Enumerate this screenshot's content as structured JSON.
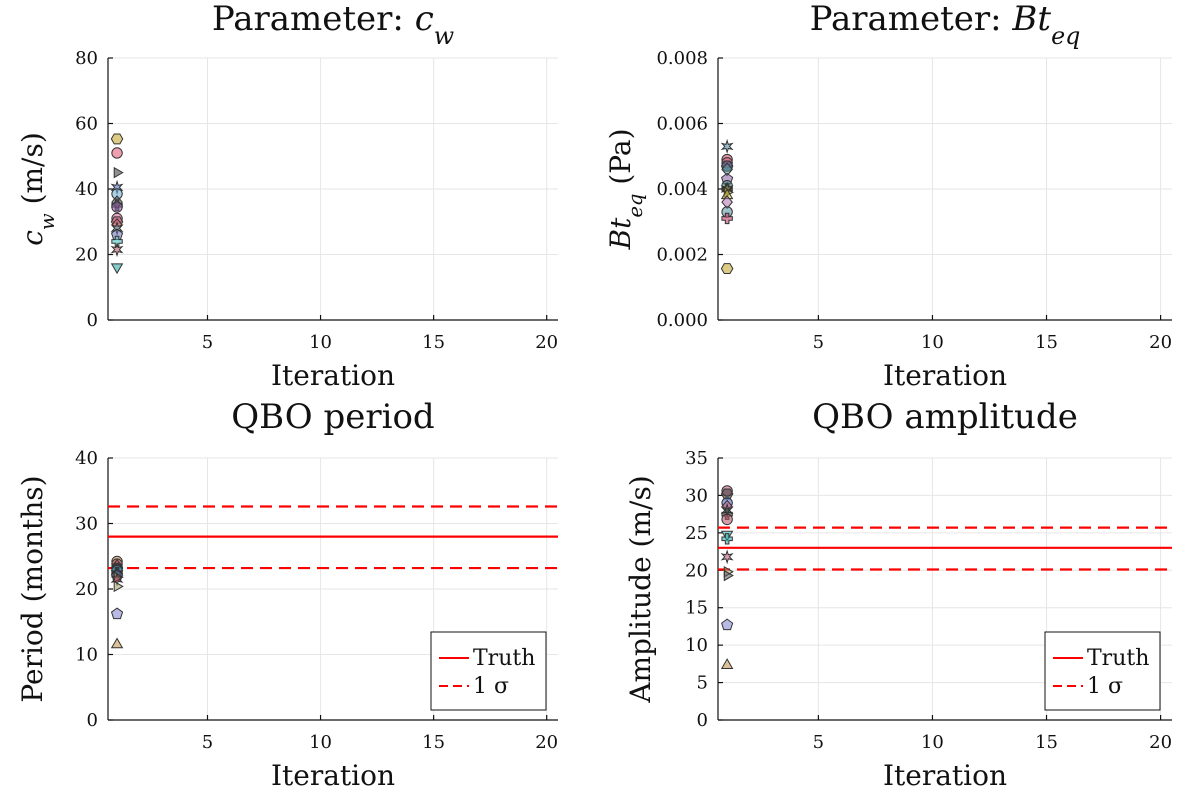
{
  "figure": {
    "background": "#ffffff"
  },
  "chart_data": [
    {
      "id": "cw",
      "type": "scatter",
      "title": "Parameter: c_w",
      "title_parts": [
        {
          "t": "Parameter: "
        },
        {
          "t": "c",
          "i": true
        },
        {
          "t": "w",
          "sub": true,
          "i": true
        }
      ],
      "xlabel": "Iteration",
      "ylabel": "c_w (m/s)",
      "ylabel_parts": [
        {
          "t": "c",
          "i": true
        },
        {
          "t": "w",
          "sub": true,
          "i": true
        },
        {
          "t": "  (m/s)"
        }
      ],
      "xlim": [
        0.6,
        20.5
      ],
      "ylim": [
        0,
        80
      ],
      "xticks": [
        5,
        10,
        15,
        20
      ],
      "xtick_labels": [
        "5",
        "10",
        "15",
        "20"
      ],
      "yticks": [
        0,
        20,
        40,
        60,
        80
      ],
      "ytick_labels": [
        "0",
        "20",
        "40",
        "60",
        "80"
      ],
      "grid": true,
      "x": [
        1,
        1,
        1,
        1,
        1,
        1,
        1,
        1,
        1,
        1,
        1,
        1,
        1,
        1,
        1,
        1
      ],
      "values": [
        55.3,
        51,
        45,
        40.5,
        38.5,
        36,
        35,
        34.5,
        31,
        30,
        29,
        28,
        26,
        24,
        21.5,
        16.2
      ],
      "colors": [
        "#c0a020",
        "#e05070",
        "#333333",
        "#4060c0",
        "#66aacc",
        "#555555",
        "#2a2a2a",
        "#8a5aa0",
        "#d0608a",
        "#c05070",
        "#e08080",
        "#5a9a9a",
        "#6a70b0",
        "#40c0c0",
        "#b05060",
        "#20a0a0"
      ],
      "markers": [
        "hex",
        "circle",
        "tri_right",
        "star",
        "circle",
        "diamond",
        "cross",
        "circle",
        "circle",
        "hex",
        "diamond",
        "star",
        "pent",
        "cross",
        "star",
        "tri_down"
      ]
    },
    {
      "id": "bt",
      "type": "scatter",
      "title": "Parameter: Bt_eq",
      "title_parts": [
        {
          "t": "Parameter: "
        },
        {
          "t": "Bt",
          "i": true
        },
        {
          "t": "eq",
          "sub": true,
          "i": true
        }
      ],
      "xlabel": "Iteration",
      "ylabel": "Bt_eq (Pa)",
      "ylabel_parts": [
        {
          "t": "Bt",
          "i": true
        },
        {
          "t": "eq",
          "sub": true,
          "i": true
        },
        {
          "t": "  (Pa)"
        }
      ],
      "xlim": [
        0.6,
        20.5
      ],
      "ylim": [
        0,
        0.008
      ],
      "xticks": [
        5,
        10,
        15,
        20
      ],
      "xtick_labels": [
        "5",
        "10",
        "15",
        "20"
      ],
      "yticks": [
        0,
        0.002,
        0.004,
        0.006,
        0.008
      ],
      "ytick_labels": [
        "0.000",
        "0.002",
        "0.004",
        "0.006",
        "0.008"
      ],
      "grid": true,
      "x": [
        1,
        1,
        1,
        1,
        1,
        1,
        1,
        1,
        1,
        1,
        1,
        1,
        1,
        1,
        1,
        1
      ],
      "values": [
        0.0053,
        0.0049,
        0.0048,
        0.0047,
        0.0047,
        0.0046,
        0.0043,
        0.0041,
        0.004,
        0.004,
        0.0039,
        0.0038,
        0.0036,
        0.0033,
        0.0031,
        0.00157
      ],
      "colors": [
        "#4080a0",
        "#c04060",
        "#e06080",
        "#333333",
        "#6a70b0",
        "#5a9a9a",
        "#8a5aa0",
        "#3a8a8a",
        "#2a2a2a",
        "#b0a030",
        "#c0a020",
        "#d0c040",
        "#b070b0",
        "#5090a0",
        "#c03060",
        "#c0a020"
      ],
      "markers": [
        "star",
        "circle",
        "circle",
        "hex",
        "circle",
        "diamond",
        "pent",
        "circle",
        "cross",
        "star",
        "tri_right",
        "tri_up",
        "diamond",
        "circle",
        "cross",
        "hex"
      ]
    },
    {
      "id": "period",
      "type": "scatter",
      "title": "QBO period",
      "title_parts": [
        {
          "t": "QBO period"
        }
      ],
      "xlabel": "Iteration",
      "ylabel": "Period (months)",
      "ylabel_parts": [
        {
          "t": "Period (months)"
        }
      ],
      "xlim": [
        0.6,
        20.5
      ],
      "ylim": [
        0,
        40
      ],
      "xticks": [
        5,
        10,
        15,
        20
      ],
      "xtick_labels": [
        "5",
        "10",
        "15",
        "20"
      ],
      "yticks": [
        0,
        10,
        20,
        30,
        40
      ],
      "ytick_labels": [
        "0",
        "10",
        "20",
        "30",
        "40"
      ],
      "grid": true,
      "x": [
        1,
        1,
        1,
        1,
        1,
        1,
        1,
        1,
        1,
        1,
        1,
        1,
        1,
        1
      ],
      "values": [
        24.2,
        23.8,
        23.5,
        23.2,
        23,
        22.8,
        22.5,
        22.3,
        22,
        21.8,
        21.5,
        20.4,
        16.2,
        11.5
      ],
      "colors": [
        "#c08040",
        "#b05060",
        "#e06080",
        "#333333",
        "#4060c0",
        "#40c0c0",
        "#2a2a2a",
        "#5a9a9a",
        "#6a70b0",
        "#b0a030",
        "#c05070",
        "#a0a060",
        "#8080d0",
        "#c09040"
      ],
      "markers": [
        "circle",
        "circle",
        "diamond",
        "hex",
        "circle",
        "circle",
        "cross",
        "star",
        "pent",
        "tri_right",
        "star",
        "tri_right",
        "pent",
        "tri_up"
      ],
      "reference_lines": [
        {
          "name": "Truth",
          "y": 28,
          "style": "solid"
        },
        {
          "name": "1 σ upper",
          "y": 32.6,
          "style": "dashed"
        },
        {
          "name": "1 σ lower",
          "y": 23.2,
          "style": "dashed"
        }
      ],
      "ref_color": "#ff0000",
      "legend": [
        {
          "label": "Truth",
          "style": "solid"
        },
        {
          "label": "1 σ",
          "style": "dashed"
        }
      ],
      "legend_position": "bottom-right"
    },
    {
      "id": "amplitude",
      "type": "scatter",
      "title": "QBO amplitude",
      "title_parts": [
        {
          "t": "QBO amplitude"
        }
      ],
      "xlabel": "Iteration",
      "ylabel": "Amplitude (m/s)",
      "ylabel_parts": [
        {
          "t": "Amplitude (m/s)"
        }
      ],
      "xlim": [
        0.6,
        20.5
      ],
      "ylim": [
        0,
        35
      ],
      "xticks": [
        5,
        10,
        15,
        20
      ],
      "xtick_labels": [
        "5",
        "10",
        "15",
        "20"
      ],
      "yticks": [
        0,
        5,
        10,
        15,
        20,
        25,
        30,
        35
      ],
      "ytick_labels": [
        "0",
        "5",
        "10",
        "15",
        "20",
        "25",
        "30",
        "35"
      ],
      "grid": true,
      "x": [
        1,
        1,
        1,
        1,
        1,
        1,
        1,
        1,
        1,
        1,
        1,
        1,
        1,
        1
      ],
      "values": [
        30.6,
        30.2,
        29,
        28.5,
        28,
        27.5,
        26.8,
        24.8,
        24.2,
        21.8,
        19.8,
        19.3,
        12.7,
        7.3
      ],
      "colors": [
        "#c05070",
        "#333333",
        "#4060c0",
        "#e06080",
        "#5a9a9a",
        "#2a2a2a",
        "#b05060",
        "#40c0c0",
        "#20a0a0",
        "#c05070",
        "#a0a060",
        "#555555",
        "#8080d0",
        "#c09040"
      ],
      "markers": [
        "circle",
        "hex",
        "circle",
        "diamond",
        "star",
        "cross",
        "circle",
        "tri_down",
        "cross",
        "star",
        "tri_right",
        "tri_right",
        "pent",
        "tri_up"
      ],
      "reference_lines": [
        {
          "name": "Truth",
          "y": 23,
          "style": "solid"
        },
        {
          "name": "1 σ upper",
          "y": 25.7,
          "style": "dashed"
        },
        {
          "name": "1 σ lower",
          "y": 20.1,
          "style": "dashed"
        }
      ],
      "ref_color": "#ff0000",
      "legend": [
        {
          "label": "Truth",
          "style": "solid"
        },
        {
          "label": "1 σ",
          "style": "dashed"
        }
      ],
      "legend_position": "bottom-right"
    }
  ]
}
